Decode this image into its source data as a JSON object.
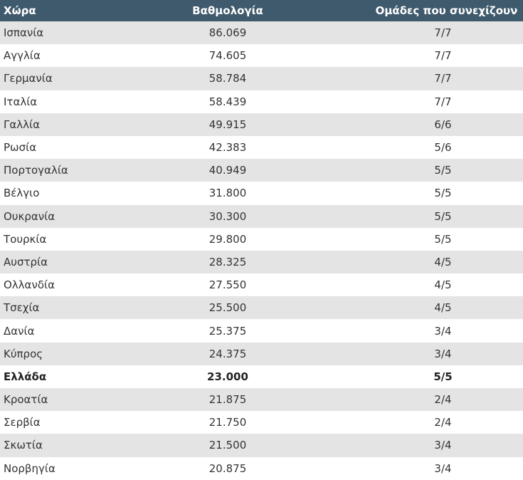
{
  "table": {
    "header": [
      "Χώρα",
      "Βαθμολογία",
      "Ομάδες που συνεχίζουν"
    ],
    "rows": [
      [
        "Ισπανία",
        "86.069",
        "7/7"
      ],
      [
        "Αγγλία",
        "74.605",
        "7/7"
      ],
      [
        "Γερμανία",
        "58.784",
        "7/7"
      ],
      [
        "Ιταλία",
        "58.439",
        "7/7"
      ],
      [
        "Γαλλία",
        "49.915",
        "6/6"
      ],
      [
        "Ρωσία",
        "42.383",
        "5/6"
      ],
      [
        "Πορτογαλία",
        "40.949",
        "5/5"
      ],
      [
        "Βέλγιο",
        "31.800",
        "5/5"
      ],
      [
        "Ουκρανία",
        "30.300",
        "5/5"
      ],
      [
        "Τουρκία",
        "29.800",
        "5/5"
      ],
      [
        "Αυστρία",
        "28.325",
        "4/5"
      ],
      [
        "Ολλανδία",
        "27.550",
        "4/5"
      ],
      [
        "Τσεχία",
        "25.500",
        "4/5"
      ],
      [
        "Δανία",
        "25.375",
        "3/4"
      ],
      [
        "Κύπρος",
        "24.375",
        "3/4"
      ],
      [
        "Ελλάδα",
        "23.000",
        "5/5"
      ],
      [
        "Κροατία",
        "21.875",
        "2/4"
      ],
      [
        "Σερβία",
        "21.750",
        "2/4"
      ],
      [
        "Σκωτία",
        "21.500",
        "3/4"
      ],
      [
        "Νορβηγία",
        "20.875",
        "3/4"
      ]
    ]
  }
}
